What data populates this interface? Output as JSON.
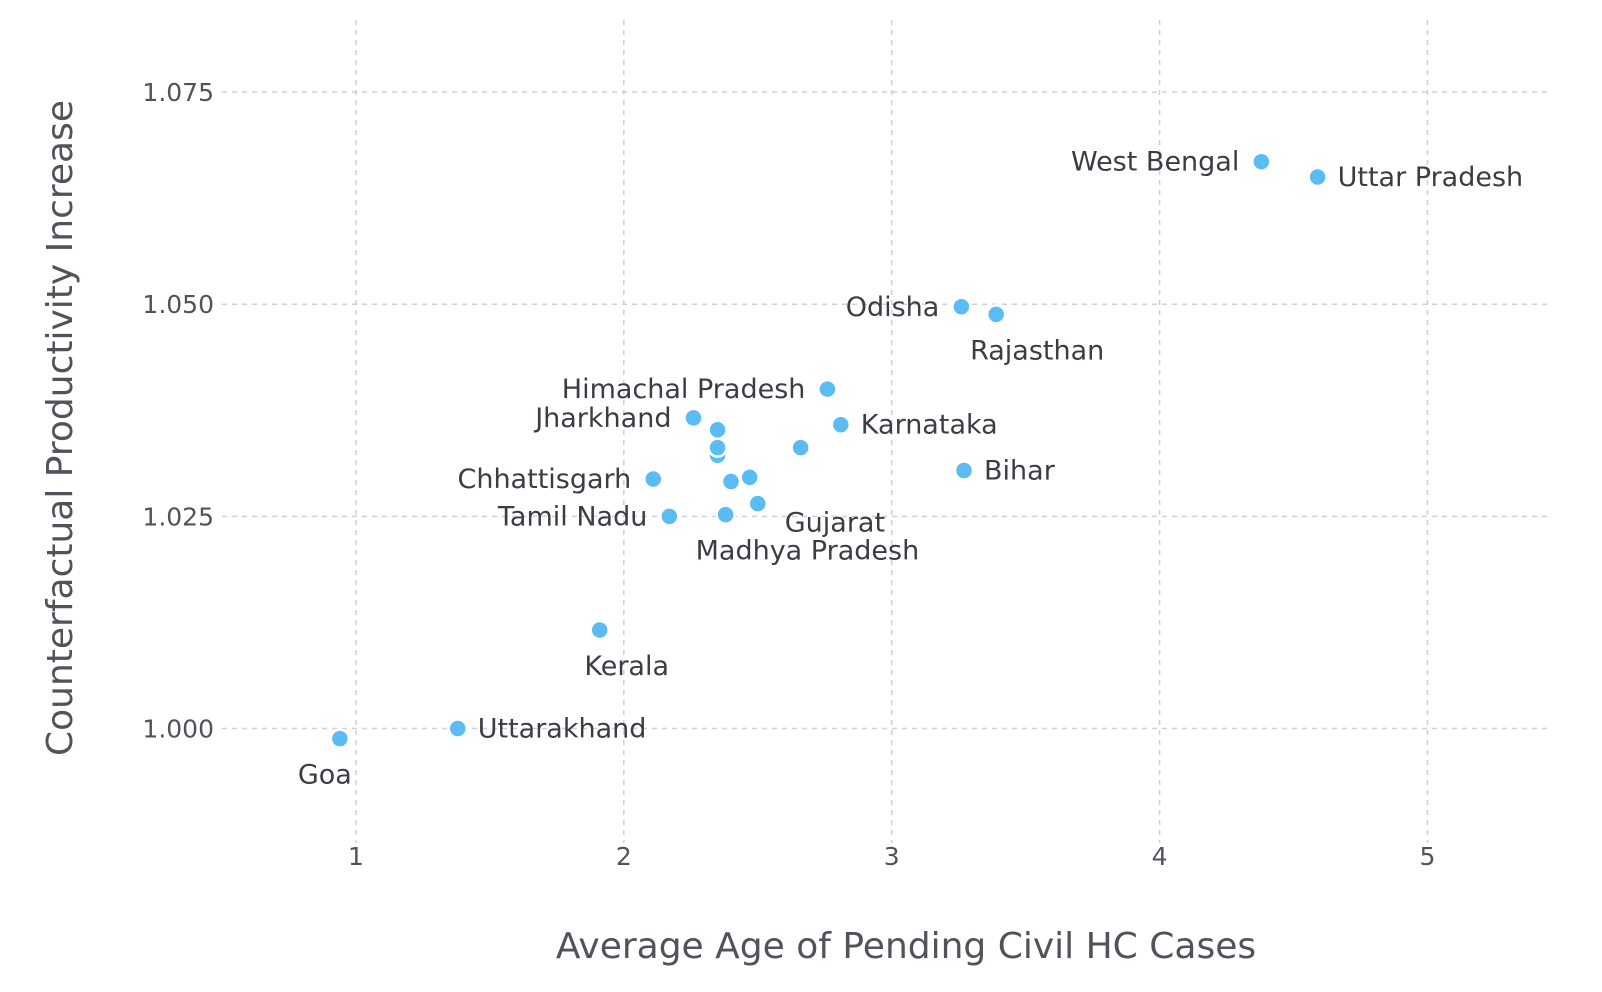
{
  "chart_data": {
    "type": "scatter",
    "xlabel": "Average Age of Pending Civil HC Cases",
    "ylabel": "Counterfactual Productivity Increase",
    "xlim": [
      0.5,
      5.45
    ],
    "ylim": [
      0.9865,
      1.0835
    ],
    "x_ticks": [
      1,
      2,
      3,
      4,
      5
    ],
    "x_tick_labels": [
      "1",
      "2",
      "3",
      "4",
      "5"
    ],
    "y_ticks": [
      1.0,
      1.025,
      1.05,
      1.075
    ],
    "y_tick_labels": [
      "1.000",
      "1.025",
      "1.050",
      "1.075"
    ],
    "grid": true,
    "point_color": "#5bbcf4",
    "points": [
      {
        "x": 0.94,
        "y": 0.9988,
        "label": "Goa",
        "label_pos": "below"
      },
      {
        "x": 1.38,
        "y": 1.0,
        "label": "Uttarakhand",
        "label_pos": "right"
      },
      {
        "x": 1.91,
        "y": 1.0116,
        "label": "Kerala",
        "label_pos": "below"
      },
      {
        "x": 2.11,
        "y": 1.0294,
        "label": "Chhattisgarh",
        "label_pos": "left"
      },
      {
        "x": 2.17,
        "y": 1.025,
        "label": "Tamil Nadu",
        "label_pos": "left"
      },
      {
        "x": 2.26,
        "y": 1.0366,
        "label": "Jharkhand",
        "label_pos": "left"
      },
      {
        "x": 2.35,
        "y": 1.0352,
        "label": "",
        "label_pos": ""
      },
      {
        "x": 2.35,
        "y": 1.0322,
        "label": "",
        "label_pos": ""
      },
      {
        "x": 2.35,
        "y": 1.0331,
        "label": "",
        "label_pos": ""
      },
      {
        "x": 2.4,
        "y": 1.0291,
        "label": "",
        "label_pos": ""
      },
      {
        "x": 2.38,
        "y": 1.0252,
        "label": "Madhya Pradesh",
        "label_pos": "below-right"
      },
      {
        "x": 2.47,
        "y": 1.0296,
        "label": "",
        "label_pos": ""
      },
      {
        "x": 2.5,
        "y": 1.0265,
        "label": "Gujarat",
        "label_pos": "right-low"
      },
      {
        "x": 2.66,
        "y": 1.0331,
        "label": "",
        "label_pos": ""
      },
      {
        "x": 2.76,
        "y": 1.04,
        "label": "Himachal Pradesh",
        "label_pos": "left"
      },
      {
        "x": 2.81,
        "y": 1.0358,
        "label": "Karnataka",
        "label_pos": "right"
      },
      {
        "x": 3.27,
        "y": 1.0304,
        "label": "Bihar",
        "label_pos": "right"
      },
      {
        "x": 3.26,
        "y": 1.0497,
        "label": "Odisha",
        "label_pos": "left"
      },
      {
        "x": 3.39,
        "y": 1.0488,
        "label": "Rajasthan",
        "label_pos": "below"
      },
      {
        "x": 4.38,
        "y": 1.0668,
        "label": "West Bengal",
        "label_pos": "left"
      },
      {
        "x": 4.59,
        "y": 1.065,
        "label": "Uttar Pradesh",
        "label_pos": "right"
      }
    ]
  }
}
